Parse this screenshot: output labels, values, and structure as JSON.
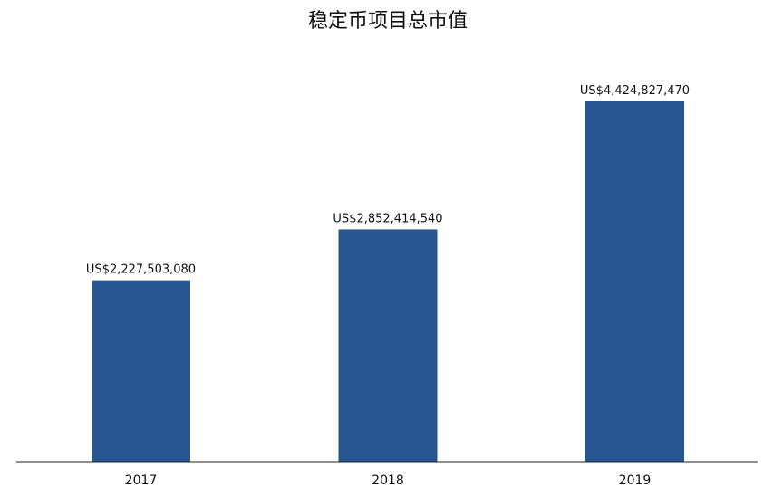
{
  "chart_data": {
    "type": "bar",
    "title": "稳定币项目总市值",
    "categories": [
      "2017",
      "2018",
      "2019"
    ],
    "values": [
      2227503080,
      2852414540,
      4424827470
    ],
    "value_labels": [
      "US$2,227,503,080",
      "US$2,852,414,540",
      "US$4,424,827,470"
    ],
    "xlabel": "",
    "ylabel": "",
    "ylim": [
      0,
      4424827470
    ],
    "grid": false,
    "bar_color": "#285690",
    "axis_color": "#222222"
  }
}
